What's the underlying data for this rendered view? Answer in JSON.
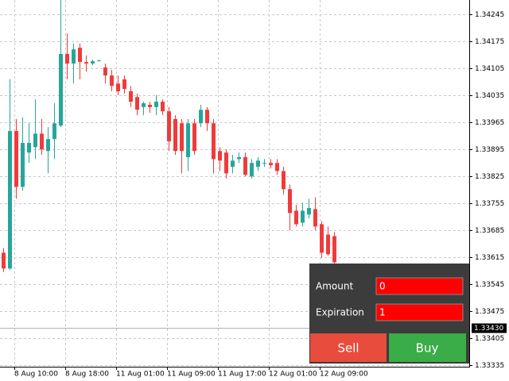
{
  "chart_data": {
    "type": "candlestick",
    "categories": [
      null,
      null,
      "8 Aug 10:00",
      null,
      null,
      null,
      null,
      null,
      null,
      null,
      "8 Aug 18:00",
      null,
      null,
      null,
      null,
      null,
      null,
      null,
      "11 Aug 01:00",
      null,
      null,
      null,
      null,
      null,
      null,
      null,
      "11 Aug 09:00",
      null,
      null,
      null,
      null,
      null,
      null,
      null,
      "11 Aug 17:00",
      null,
      null,
      null,
      null,
      null,
      null,
      null,
      "12 Aug 01:00",
      null,
      null,
      null,
      null,
      null,
      null,
      null,
      "12 Aug 09:00",
      null,
      null
    ],
    "open": [
      1.33626,
      1.33585,
      1.33942,
      1.33797,
      1.33886,
      1.339,
      1.33935,
      1.3389,
      1.33921,
      1.33956,
      1.34142,
      1.34117,
      1.34158,
      1.34121,
      1.34117,
      1.34125,
      1.34107,
      1.34086,
      1.34065,
      1.34076,
      1.34045,
      1.3403,
      1.34004,
      1.3401,
      1.34004,
      1.34018,
      1.33993,
      1.33973,
      1.33962,
      1.33874,
      1.33962,
      1.33962,
      1.33997,
      1.33962,
      1.3389,
      1.33886,
      1.33849,
      1.33869,
      1.33874,
      1.33824,
      1.33849,
      1.33859,
      1.33859,
      1.33859,
      1.33838,
      1.33791,
      1.33735,
      1.33704,
      1.33725,
      1.33739,
      1.337,
      1.33673,
      1.33669
    ],
    "high": [
      1.33638,
      1.34076,
      1.33973,
      1.33977,
      1.33962,
      1.34024,
      1.33973,
      1.33952,
      1.34014,
      1.34282,
      1.34195,
      1.34169,
      1.34169,
      1.34138,
      1.34127,
      1.34127,
      1.34117,
      1.34101,
      1.34086,
      1.34086,
      1.34059,
      1.34039,
      1.34018,
      1.34018,
      1.34035,
      1.34024,
      1.34004,
      1.33983,
      1.33973,
      1.33973,
      1.33973,
      1.3401,
      1.34004,
      1.33973,
      1.339,
      1.33894,
      1.3388,
      1.33886,
      1.33886,
      1.33869,
      1.33874,
      1.33869,
      1.33869,
      1.33869,
      1.33849,
      1.33803,
      1.3375,
      1.33756,
      1.33766,
      1.3377,
      1.33708,
      1.33694,
      1.3368
    ],
    "low": [
      1.33576,
      1.33581,
      1.33766,
      1.33787,
      1.33859,
      1.33869,
      1.3388,
      1.33832,
      1.33869,
      1.33952,
      1.34076,
      1.34065,
      1.34076,
      1.34096,
      1.34113,
      1.34123,
      1.34065,
      1.34045,
      1.34035,
      1.34039,
      1.34004,
      1.33983,
      1.33983,
      1.33989,
      1.33983,
      1.33983,
      1.3389,
      1.3388,
      1.33832,
      1.33838,
      1.3388,
      1.33952,
      1.33942,
      1.33832,
      1.33838,
      1.33818,
      1.33832,
      1.33859,
      1.33824,
      1.33818,
      1.33838,
      1.33849,
      1.33845,
      1.33828,
      1.33777,
      1.33684,
      1.33694,
      1.33694,
      1.33715,
      1.33684,
      1.33612,
      1.33618,
      1.33591
    ],
    "close": [
      1.33585,
      1.33942,
      1.33797,
      1.33911,
      1.33911,
      1.33935,
      1.33894,
      1.33921,
      1.33962,
      1.34142,
      1.34117,
      1.34154,
      1.34121,
      1.34117,
      1.34123,
      1.34125,
      1.34086,
      1.34059,
      1.34045,
      1.34051,
      1.34018,
      1.33997,
      1.34014,
      1.34004,
      1.34018,
      1.33993,
      1.33915,
      1.3389,
      1.3389,
      1.33962,
      1.3389,
      1.33997,
      1.33962,
      1.33869,
      1.33865,
      1.33832,
      1.33865,
      1.33874,
      1.33828,
      1.33859,
      1.33865,
      1.33859,
      1.33853,
      1.33838,
      1.33791,
      1.33729,
      1.337,
      1.33735,
      1.33742,
      1.33694,
      1.33626,
      1.33622,
      1.33601
    ],
    "up_color": "#26a69a",
    "down_color": "#ef3b3b",
    "ylim": [
      1.3333,
      1.34282
    ],
    "yticks": [
      1.34245,
      1.34175,
      1.34105,
      1.34035,
      1.33965,
      1.33895,
      1.33825,
      1.33755,
      1.33685,
      1.33615,
      1.33545,
      1.33475,
      1.33405,
      1.33335
    ],
    "current_price": {
      "value": 1.3343,
      "label": "1.33430"
    },
    "grid": true
  },
  "panel": {
    "amount_label": "Amount",
    "amount_value": 0,
    "expiration_label": "Expiration",
    "expiration_value": 1,
    "sell": "Sell",
    "buy": "Buy"
  }
}
